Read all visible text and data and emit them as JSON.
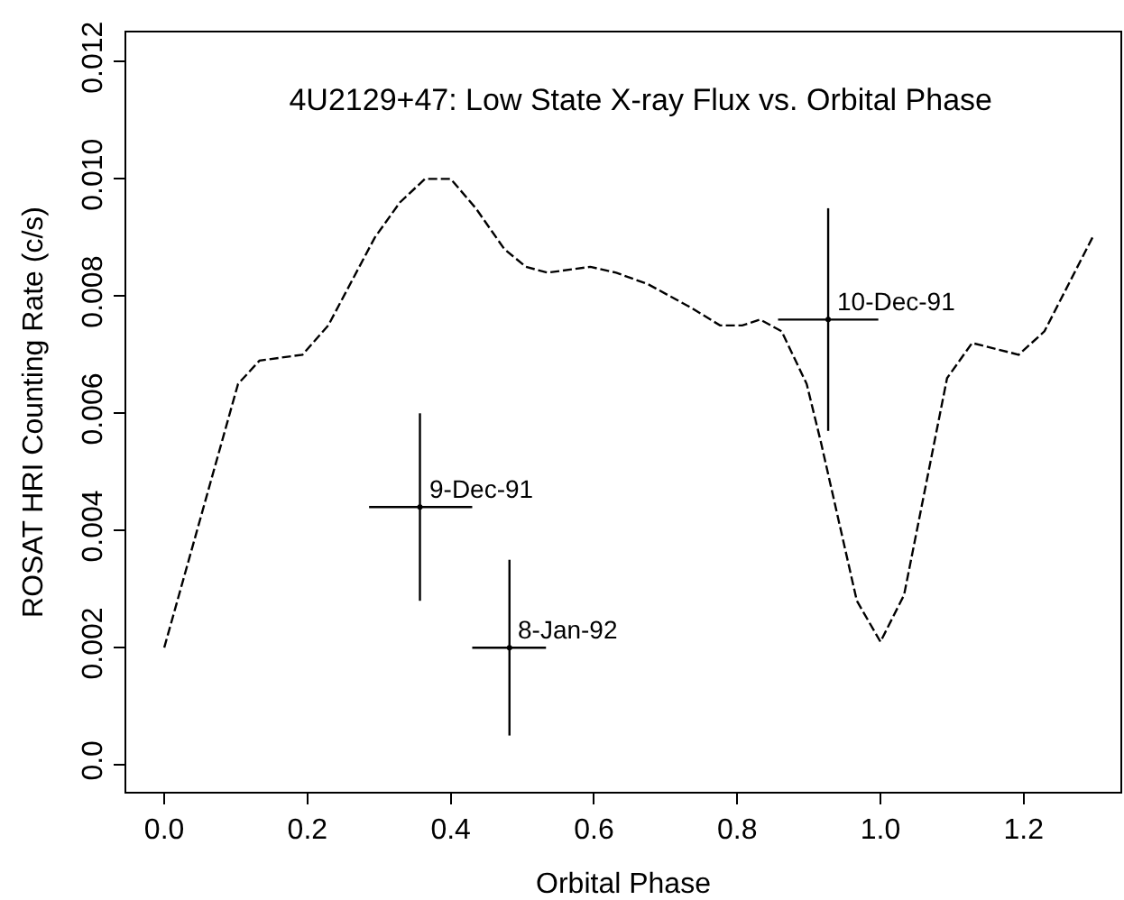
{
  "chart_data": {
    "type": "line",
    "title": "4U2129+47: Low State X-ray Flux vs. Orbital Phase",
    "xlabel": "Orbital Phase",
    "ylabel": "ROSAT HRI Counting Rate (c/s)",
    "xlim": [
      -0.053,
      1.335
    ],
    "ylim": [
      -0.00046,
      0.0125
    ],
    "xticks": [
      {
        "value": 0,
        "label": "0.0"
      },
      0.2,
      0.4,
      0.6,
      0.8,
      {
        "value": 1,
        "label": "1.0"
      },
      1.2
    ],
    "yticks": [
      {
        "value": 0,
        "label": "0.0"
      },
      0.002,
      0.004,
      0.006,
      0.008,
      {
        "value": 0.01,
        "label": "0.010"
      },
      0.012
    ],
    "series": [
      {
        "line_style": "dashed",
        "color": "#000000",
        "x": [
          0,
          0.103,
          0.133,
          0.193,
          0.229,
          0.294,
          0.329,
          0.364,
          0.4,
          0.435,
          0.475,
          0.505,
          0.535,
          0.595,
          0.631,
          0.676,
          0.736,
          0.776,
          0.807,
          0.832,
          0.862,
          0.897,
          0.917,
          0.967,
          1.0,
          1.033,
          1.093,
          1.128,
          1.193,
          1.229,
          1.296
        ],
        "values": [
          0.002,
          0.0065,
          0.0069,
          0.007,
          0.0075,
          0.009,
          0.0096,
          0.01,
          0.01,
          0.0095,
          0.0088,
          0.0085,
          0.0084,
          0.0085,
          0.0084,
          0.0082,
          0.0078,
          0.0075,
          0.0075,
          0.0076,
          0.0074,
          0.0065,
          0.0055,
          0.0028,
          0.0021,
          0.0029,
          0.0066,
          0.0072,
          0.007,
          0.0074,
          0.009
        ]
      },
      {
        "type": "scatter",
        "color": "#000000",
        "x": [
          0.357,
          0.482,
          0.927
        ],
        "values": [
          0.0044,
          0.002,
          0.0076
        ],
        "errors": [
          [
            0.0028,
            0.006
          ],
          [
            0.0005,
            0.0035
          ],
          [
            0.0057,
            0.0095
          ]
        ],
        "xerrors": [
          [
            0.286,
            0.43
          ],
          [
            0.43,
            0.533
          ],
          [
            0.857,
            0.997
          ]
        ]
      }
    ],
    "annotations": [
      {
        "text": "9-Dec-91",
        "x": 0.357,
        "y": 0.0044
      },
      {
        "text": "8-Jan-92",
        "x": 0.482,
        "y": 0.002
      },
      {
        "text": "10-Dec-91",
        "x": 0.927,
        "y": 0.0076
      }
    ]
  }
}
